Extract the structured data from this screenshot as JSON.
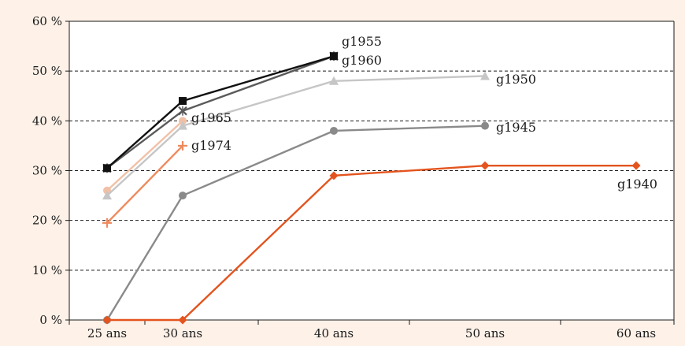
{
  "chart_data": {
    "type": "line",
    "title": "",
    "xlabel": "",
    "ylabel": "",
    "x_tick_labels": [
      "25 ans",
      "30 ans",
      "40 ans",
      "50 ans",
      "60 ans"
    ],
    "x_tick_values": [
      25,
      30,
      40,
      50,
      60
    ],
    "y_tick_labels": [
      "0 %",
      "10 %",
      "20 %",
      "30 %",
      "40 %",
      "50 %",
      "60 %"
    ],
    "y_tick_values": [
      0,
      10,
      20,
      30,
      40,
      50,
      60
    ],
    "ylim": [
      0,
      60
    ],
    "xlim": [
      22.5,
      62.5
    ],
    "grid": "horizontal dashed",
    "legend": "none (series labelled directly on the chart)",
    "series": [
      {
        "name": "g1940",
        "color": "#e3541e",
        "marker": "diamond",
        "points": [
          [
            25,
            0
          ],
          [
            30,
            0
          ],
          [
            40,
            29
          ],
          [
            50,
            31
          ],
          [
            60,
            31
          ]
        ]
      },
      {
        "name": "g1945",
        "color": "#8a8a8a",
        "marker": "circle",
        "points": [
          [
            25,
            0
          ],
          [
            30,
            25
          ],
          [
            40,
            38
          ],
          [
            50,
            39
          ]
        ]
      },
      {
        "name": "g1950",
        "color": "#c6c6c6",
        "marker": "triangle",
        "points": [
          [
            25,
            25
          ],
          [
            30,
            39
          ],
          [
            40,
            48
          ],
          [
            50,
            49
          ]
        ]
      },
      {
        "name": "g1955",
        "color": "#111111",
        "marker": "square",
        "points": [
          [
            25,
            30.5
          ],
          [
            30,
            44
          ],
          [
            40,
            53
          ]
        ]
      },
      {
        "name": "g1960",
        "color": "#5a5a5a",
        "marker": "star",
        "points": [
          [
            25,
            30.5
          ],
          [
            30,
            42
          ],
          [
            40,
            53
          ]
        ]
      },
      {
        "name": "g1965",
        "color": "#f2c0a6",
        "marker": "circle",
        "points": [
          [
            25,
            26
          ],
          [
            30,
            40
          ]
        ]
      },
      {
        "name": "g1974",
        "color": "#ef8a5e",
        "marker": "plus",
        "points": [
          [
            25,
            19.5
          ],
          [
            30,
            35
          ]
        ]
      }
    ]
  }
}
